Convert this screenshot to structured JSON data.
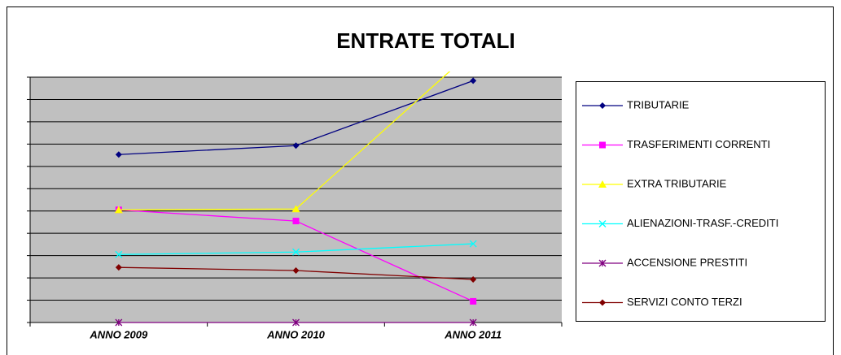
{
  "chart_data": {
    "type": "line",
    "title": "ENTRATE TOTALI",
    "categories": [
      "ANNO 2009",
      "ANNO 2010",
      "ANNO 2011"
    ],
    "ylim": [
      0,
      11
    ],
    "yticks": [
      0,
      1,
      2,
      3,
      4,
      5,
      6,
      7,
      8,
      9,
      10,
      11
    ],
    "grid": true,
    "legend": "right",
    "series": [
      {
        "name": "TRIBUTARIE",
        "color": "#000080",
        "marker": "diamond",
        "values": [
          7.53,
          7.93,
          10.84
        ]
      },
      {
        "name": "TRASFERIMENTI CORRENTI",
        "color": "#ff00ff",
        "marker": "square",
        "values": [
          5.05,
          4.55,
          0.95
        ]
      },
      {
        "name": "EXTRA TRIBUTARIE",
        "color": "#ffff00",
        "marker": "triangle",
        "values": [
          5.05,
          5.09,
          12.2
        ]
      },
      {
        "name": "ALIENAZIONI-TRASF.-CREDITI",
        "color": "#00ffff",
        "marker": "x",
        "values": [
          3.05,
          3.16,
          3.53
        ]
      },
      {
        "name": "ACCENSIONE PRESTITI",
        "color": "#800080",
        "marker": "star",
        "values": [
          0,
          0,
          0
        ]
      },
      {
        "name": "SERVIZI CONTO TERZI",
        "color": "#800000",
        "marker": "diamond",
        "values": [
          2.47,
          2.33,
          1.93
        ]
      }
    ]
  }
}
